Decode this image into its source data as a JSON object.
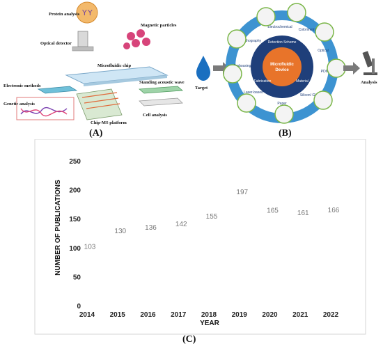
{
  "panel_a": {
    "label": "(A)",
    "labels": {
      "protein": "Protein analysis",
      "optical": "Optical detector",
      "magnetic": "Magnetic particles",
      "microchip": "Microfluidic chip",
      "electronic": "Electronic methods",
      "saw": "Standing acoustic wave",
      "genetic": "Genetic analysis",
      "chipms": "Chip-MS platform",
      "cell": "Cell analysis"
    }
  },
  "panel_b": {
    "label": "(B)",
    "target": "Target",
    "analysis": "Analysis",
    "center_line1": "Microfluidic",
    "center_line2": "Device",
    "ring_labels": [
      "Detection Scheme",
      "Material",
      "Fabrication"
    ],
    "outer_labels": [
      "Electrochemical",
      "Colorimetric",
      "Optical",
      "PDMS",
      "Silicon/ Glass",
      "Paper",
      "Laser-based",
      "Embossing",
      "Lithography"
    ],
    "colors": {
      "outer_ring": "#3d93d1",
      "middle_ring": "#1f3f7a",
      "center": "#e8742a",
      "arrow": "#7a7a7a",
      "drop": "#1a6fc0"
    }
  },
  "panel_c": {
    "label": "(C)"
  },
  "chart_data": {
    "type": "scatter",
    "categories": [
      "2014",
      "2015",
      "2016",
      "2017",
      "2018",
      "2019",
      "2020",
      "2021",
      "2022"
    ],
    "values": [
      103,
      130,
      136,
      142,
      155,
      197,
      165,
      161,
      166
    ],
    "xlabel": "YEAR",
    "ylabel": "NUMBER OF PUBLICATIONS",
    "ylim": [
      0,
      250
    ],
    "yticks": [
      0,
      50,
      100,
      150,
      200,
      250
    ],
    "grid": false,
    "legend": "none",
    "mark_style": "value labels only"
  }
}
